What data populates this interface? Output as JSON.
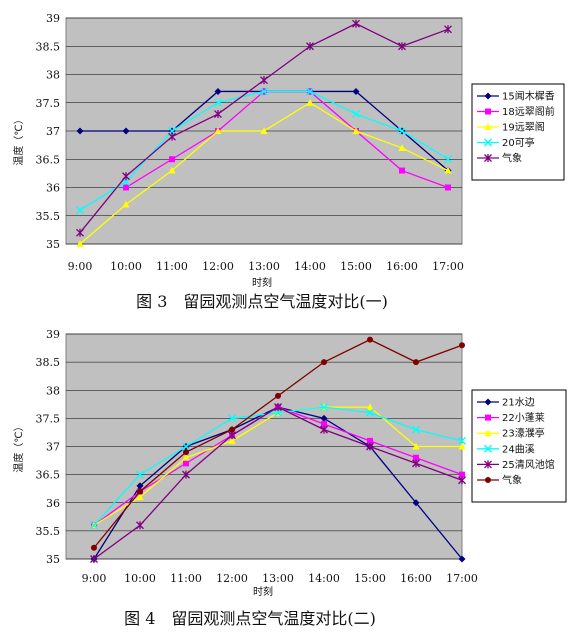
{
  "chart_data": [
    {
      "type": "line",
      "caption": "图 3　留园观测点空气温度对比(一)",
      "xlabel": "时刻",
      "ylabel": "温度（℃）",
      "categories": [
        "9:00",
        "10:00",
        "11:00",
        "12:00",
        "13:00",
        "14:00",
        "15:00",
        "16:00",
        "17:00"
      ],
      "ylim": [
        35,
        39
      ],
      "yticks": [
        "35",
        "35.5",
        "36",
        "36.5",
        "37",
        "37.5",
        "38",
        "38.5",
        "39"
      ],
      "grid": true,
      "legend_position": "right",
      "series": [
        {
          "name": "15闻木樨香",
          "color": "#000080",
          "marker": "diamond",
          "values": [
            37,
            37,
            37,
            37.7,
            37.7,
            37.7,
            37.7,
            37,
            36.3
          ]
        },
        {
          "name": "18远翠阁前",
          "color": "#ff00ff",
          "marker": "square",
          "values": [
            null,
            36,
            36.5,
            37,
            37.7,
            37.7,
            37,
            36.3,
            36
          ]
        },
        {
          "name": "19远翠阁",
          "color": "#ffff00",
          "marker": "triangle",
          "values": [
            35,
            35.7,
            36.3,
            37,
            37,
            37.5,
            37,
            36.7,
            36.3
          ]
        },
        {
          "name": "20可亭",
          "color": "#00ffff",
          "marker": "x",
          "values": [
            35.6,
            36.1,
            37,
            37.5,
            37.7,
            37.7,
            37.3,
            37,
            36.5
          ]
        },
        {
          "name": "气象",
          "color": "#800080",
          "marker": "star",
          "values": [
            35.2,
            36.2,
            36.9,
            37.3,
            37.9,
            38.5,
            38.9,
            38.5,
            38.8
          ]
        }
      ]
    },
    {
      "type": "line",
      "caption": "图 4　留园观测点空气温度对比(二)",
      "xlabel": "时刻",
      "ylabel": "温度（℃）",
      "categories": [
        "9:00",
        "10:00",
        "11:00",
        "12:00",
        "13:00",
        "14:00",
        "15:00",
        "16:00",
        "17:00"
      ],
      "ylim": [
        35,
        39
      ],
      "yticks": [
        "35",
        "35.5",
        "36",
        "36.5",
        "37",
        "37.5",
        "38",
        "38.5",
        "39"
      ],
      "grid": true,
      "legend_position": "right",
      "series": [
        {
          "name": "21水边",
          "color": "#000080",
          "marker": "diamond",
          "values": [
            35,
            36.3,
            37,
            37.3,
            37.7,
            37.5,
            37,
            36,
            35
          ]
        },
        {
          "name": "22小蓬莱",
          "color": "#ff00ff",
          "marker": "square",
          "values": [
            35.6,
            36.2,
            36.7,
            37.2,
            37.7,
            37.4,
            37.1,
            36.8,
            36.5
          ]
        },
        {
          "name": "23濠濮亭",
          "color": "#ffff00",
          "marker": "triangle",
          "values": [
            35.6,
            36.1,
            36.8,
            37.1,
            37.6,
            37.7,
            37.7,
            37,
            37
          ]
        },
        {
          "name": "24曲溪",
          "color": "#00ffff",
          "marker": "x",
          "values": [
            35.6,
            36.5,
            37,
            37.5,
            37.6,
            37.7,
            37.6,
            37.3,
            37.1
          ]
        },
        {
          "name": "25清风池馆",
          "color": "#800080",
          "marker": "star",
          "values": [
            35,
            35.6,
            36.5,
            37.2,
            37.7,
            37.3,
            37,
            36.7,
            36.4
          ]
        },
        {
          "name": "气象",
          "color": "#800000",
          "marker": "circle",
          "values": [
            35.2,
            36.2,
            36.9,
            37.3,
            37.9,
            38.5,
            38.9,
            38.5,
            38.8
          ]
        }
      ]
    }
  ]
}
